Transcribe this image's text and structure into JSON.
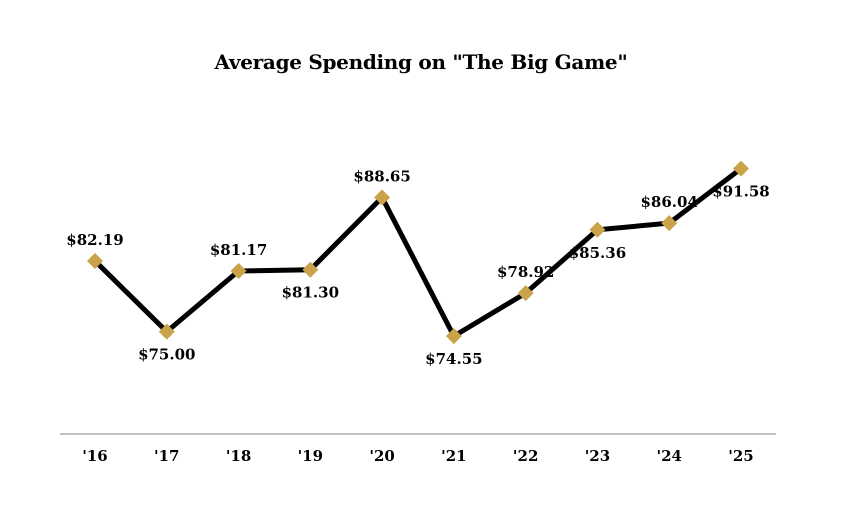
{
  "chart_data": {
    "type": "line",
    "title": "Average Spending on \"The Big Game\"",
    "xlabel": "",
    "ylabel": "",
    "categories": [
      "'16",
      "'17",
      "'18",
      "'19",
      "'20",
      "'21",
      "'22",
      "'23",
      "'24",
      "'25"
    ],
    "series": [
      {
        "values": [
          82.19,
          75.0,
          81.17,
          81.3,
          88.65,
          74.55,
          78.92,
          85.36,
          86.04,
          91.58
        ]
      }
    ],
    "data_labels": [
      "$82.19",
      "$75.00",
      "$81.17",
      "$81.30",
      "$88.65",
      "$74.55",
      "$78.92",
      "$85.36",
      "$86.04",
      "$91.58"
    ],
    "label_positions": [
      "above",
      "below",
      "above",
      "below",
      "above",
      "below",
      "above",
      "below",
      "above",
      "below"
    ],
    "ylim": [
      65,
      95
    ],
    "grid": false,
    "legend": "none",
    "colors": {
      "line": "#000000",
      "marker": "#C9A24A",
      "axis": "#808080",
      "text": "#000000"
    }
  }
}
